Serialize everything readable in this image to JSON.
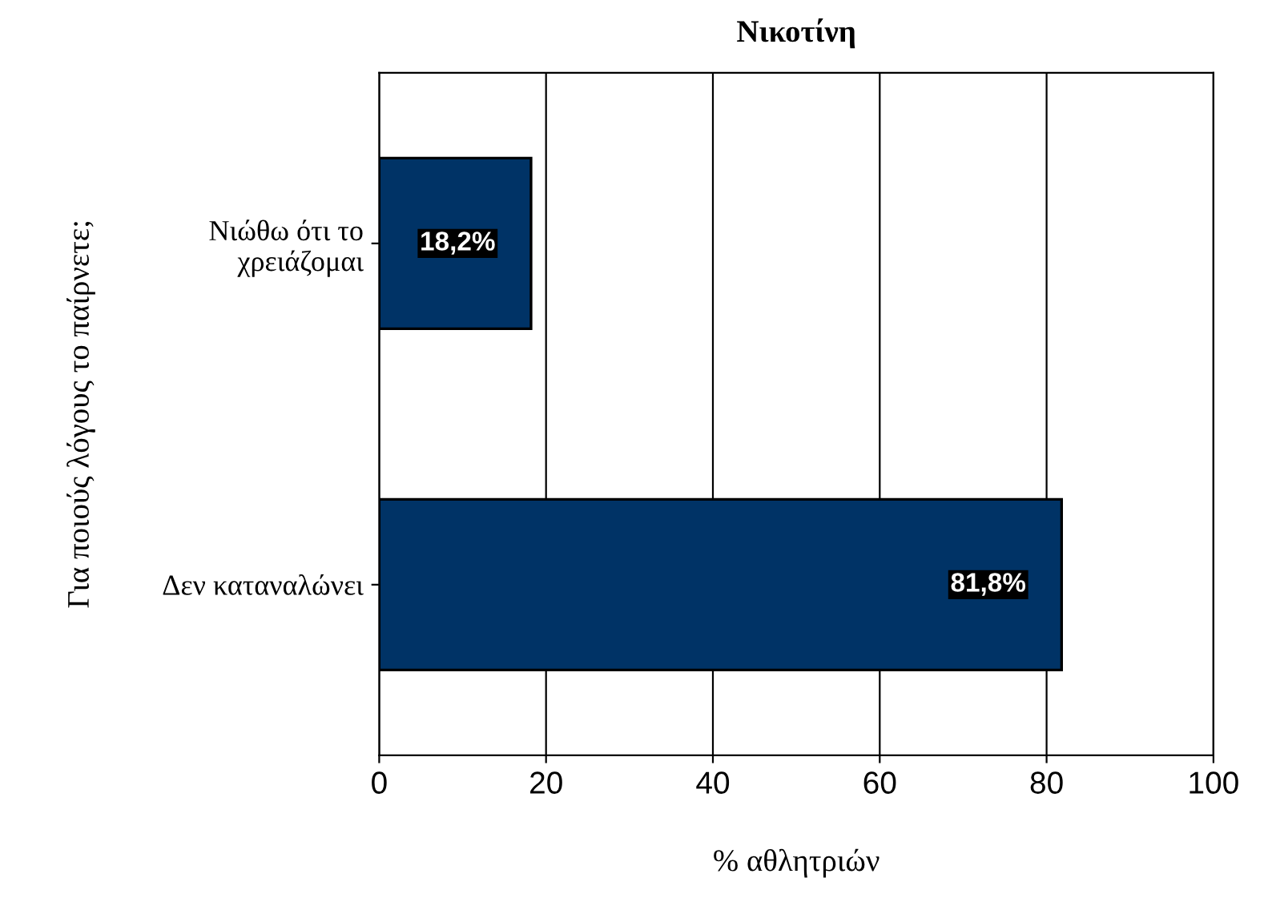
{
  "chart_data": {
    "type": "bar",
    "orientation": "horizontal",
    "title": "Νικοτίνη",
    "xlabel": "% αθλητριών",
    "ylabel": "Για ποιούς λόγους το παίρνετε;",
    "categories": [
      "Νιώθω ότι το\nχρειάζομαι",
      "Δεν καταναλώνει"
    ],
    "values": [
      18.2,
      81.8
    ],
    "value_labels": [
      "18,2%",
      "81,8%"
    ],
    "color": "#003366",
    "xlim": [
      0,
      100
    ],
    "xticks": [
      0,
      20,
      40,
      60,
      80,
      100
    ],
    "grid": "x"
  }
}
